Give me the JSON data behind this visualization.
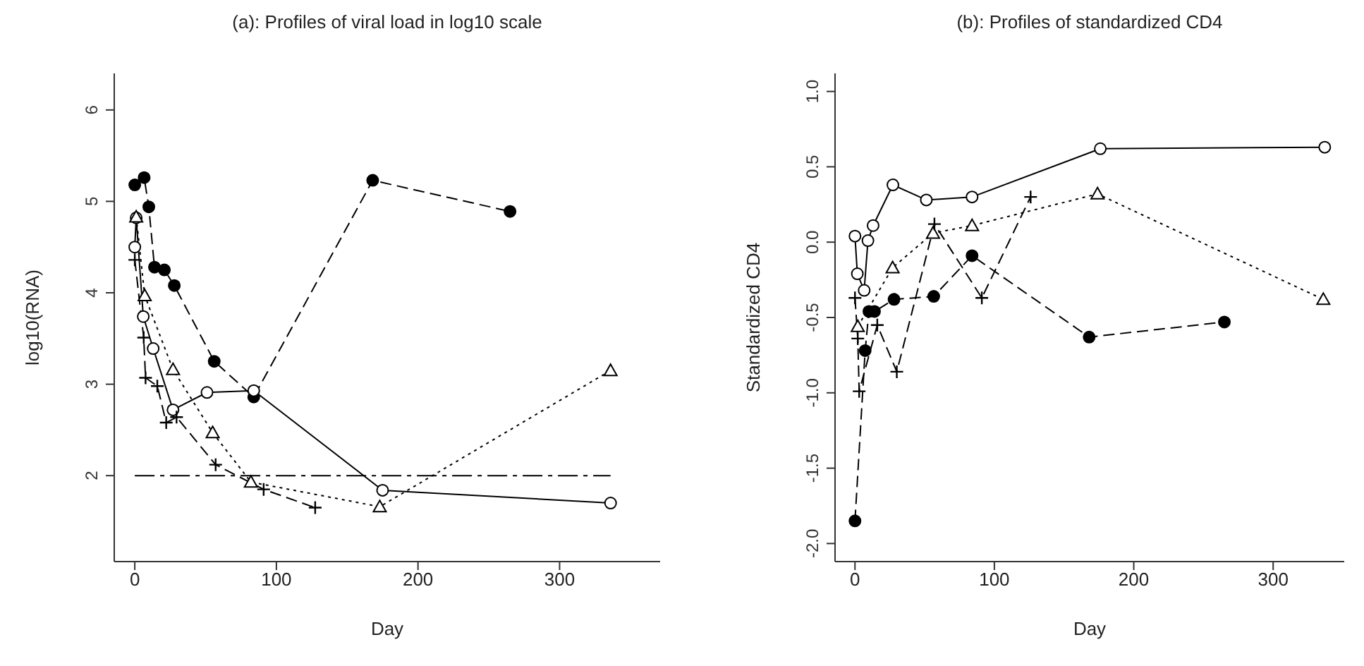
{
  "chart_data": [
    {
      "type": "line",
      "title": "(a): Profiles of viral load in log10 scale",
      "xlabel": "Day",
      "ylabel": "log10(RNA)",
      "xlim": [
        -14.5,
        371
      ],
      "xticks": [
        0,
        100,
        200,
        300
      ],
      "ylim": [
        1.06,
        6.4
      ],
      "yticks": [
        2,
        3,
        4,
        5,
        6
      ],
      "ref_lines": [
        {
          "axis": "y",
          "value": 2,
          "line_style": "dashed",
          "color": "#000000"
        }
      ],
      "series": [
        {
          "color": "#000000",
          "marker": "circle",
          "line_style": "dashed",
          "x": [
            0,
            6.6,
            9.9,
            13.9,
            20.9,
            27.9,
            56.1,
            84,
            168,
            265
          ],
          "values": [
            5.18,
            5.26,
            4.94,
            4.28,
            4.25,
            4.08,
            3.25,
            2.86,
            5.23,
            4.89
          ]
        },
        {
          "color": "#000000",
          "marker": "circle",
          "line_style": "solid",
          "x": [
            0,
            1,
            6,
            13,
            27,
            51,
            84,
            175,
            336
          ],
          "values": [
            4.5,
            4.82,
            3.74,
            3.39,
            2.72,
            2.91,
            2.93,
            1.84,
            1.7
          ]
        },
        {
          "color": "#000000",
          "marker": "triangle",
          "line_style": "dotted",
          "x": [
            1,
            7,
            27,
            55,
            82,
            173,
            336
          ],
          "values": [
            4.83,
            3.97,
            3.16,
            2.47,
            1.93,
            1.66,
            3.15
          ]
        },
        {
          "color": "#000000",
          "marker": "cross",
          "line_style": "dashed",
          "x": [
            0,
            6.3,
            7.6,
            15.9,
            22.2,
            29.5,
            57.1,
            91,
            127.4
          ],
          "values": [
            4.36,
            3.51,
            3.07,
            2.98,
            2.58,
            2.64,
            2.12,
            1.85,
            1.65
          ]
        }
      ]
    },
    {
      "type": "line",
      "title": "(b): Profiles of standardized CD4",
      "xlabel": "Day",
      "ylabel": "Standardized CD4",
      "xlim": [
        -14.3,
        351
      ],
      "xticks": [
        0,
        100,
        200,
        300
      ],
      "ylim": [
        -2.12,
        1.12
      ],
      "yticks": [
        {
          "value": -2,
          "label": "-2.0"
        },
        {
          "value": -1.5,
          "label": "-1.5"
        },
        {
          "value": -1,
          "label": "-1.0"
        },
        {
          "value": -0.5,
          "label": "-0.5"
        },
        {
          "value": 0,
          "label": "0.0"
        },
        {
          "value": 0.5,
          "label": "0.5"
        },
        {
          "value": 1,
          "label": "1.0"
        }
      ],
      "series": [
        {
          "color": "#000000",
          "marker": "circle",
          "line_style": "dashed",
          "x": [
            0,
            7.3,
            10,
            14,
            28,
            56.5,
            84,
            168,
            265
          ],
          "values": [
            -1.85,
            -0.72,
            -0.46,
            -0.46,
            -0.38,
            -0.36,
            -0.09,
            -0.63,
            -0.53
          ]
        },
        {
          "color": "#000000",
          "marker": "circle",
          "line_style": "solid",
          "x": [
            0,
            1.7,
            6.6,
            9.3,
            13,
            27.2,
            51.2,
            84,
            176,
            337
          ],
          "values": [
            0.04,
            -0.21,
            -0.32,
            0.01,
            0.11,
            0.38,
            0.28,
            0.3,
            0.62,
            0.63
          ]
        },
        {
          "color": "#000000",
          "marker": "triangle",
          "line_style": "dotted",
          "x": [
            2,
            27,
            56,
            84,
            174,
            336
          ],
          "values": [
            -0.56,
            -0.17,
            0.06,
            0.11,
            0.32,
            -0.38
          ]
        },
        {
          "color": "#000000",
          "marker": "cross",
          "line_style": "dashed",
          "x": [
            0,
            2,
            3,
            16,
            30,
            57,
            91,
            126
          ],
          "values": [
            -0.37,
            -0.64,
            -0.99,
            -0.55,
            -0.86,
            0.12,
            -0.37,
            0.3
          ]
        }
      ]
    }
  ]
}
